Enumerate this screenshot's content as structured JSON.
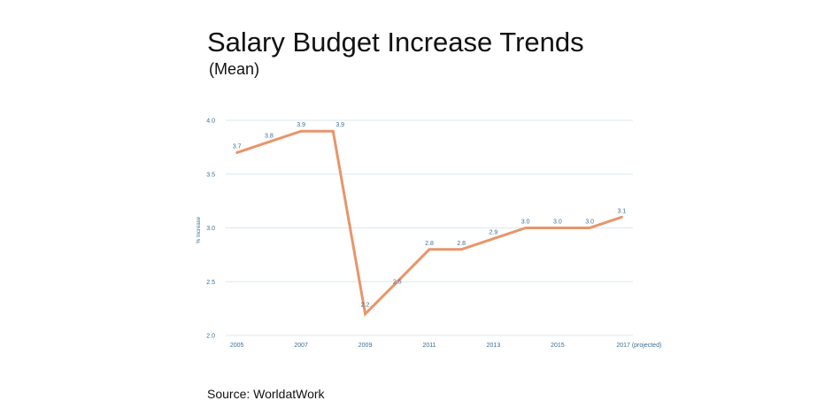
{
  "title": "Salary Budget Increase Trends",
  "subtitle": "(Mean)",
  "source": "Source:  WorldatWork",
  "chart_data": {
    "type": "line",
    "ylabel": "% Increase",
    "xlabel": "",
    "ylim": [
      2.0,
      4.0
    ],
    "y_ticks": [
      "2.0",
      "2.5",
      "3.0",
      "3.5",
      "4.0"
    ],
    "x_tick_labels": [
      "2005",
      "2007",
      "2009",
      "2011",
      "2013",
      "2015",
      "2017 (projected)"
    ],
    "grid": true,
    "line_color": "#e8956a",
    "series": [
      {
        "x": [
          2005,
          2006,
          2007,
          2008,
          2009,
          2010,
          2011,
          2012,
          2013,
          2014,
          2015,
          2016,
          2017
        ],
        "values": [
          3.7,
          3.8,
          3.9,
          3.9,
          2.2,
          2.5,
          2.8,
          2.8,
          2.9,
          3.0,
          3.0,
          3.0,
          3.1
        ],
        "labels": [
          "3.7",
          "3.8",
          "3.9",
          "3.9",
          "2.2",
          "2.5",
          "2.8",
          "2.8",
          "2.9",
          "3.0",
          "3.0",
          "3.0",
          "3.1"
        ]
      }
    ]
  }
}
